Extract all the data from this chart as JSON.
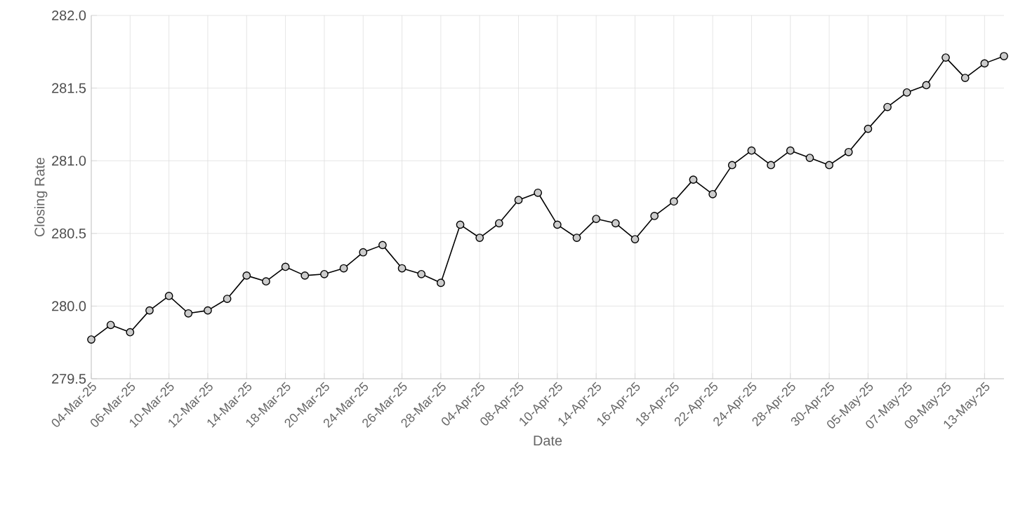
{
  "chart_data": {
    "type": "line",
    "xlabel": "Date",
    "ylabel": "Closing Rate",
    "categories": [
      "04-Mar-25",
      null,
      "06-Mar-25",
      null,
      "10-Mar-25",
      null,
      "12-Mar-25",
      null,
      "14-Mar-25",
      null,
      "18-Mar-25",
      null,
      "20-Mar-25",
      null,
      "24-Mar-25",
      null,
      "26-Mar-25",
      null,
      "28-Mar-25",
      null,
      "04-Apr-25",
      null,
      "08-Apr-25",
      null,
      "10-Apr-25",
      null,
      "14-Apr-25",
      null,
      "16-Apr-25",
      null,
      "18-Apr-25",
      null,
      "22-Apr-25",
      null,
      "24-Apr-25",
      null,
      "28-Apr-25",
      null,
      "30-Apr-25",
      null,
      "05-May-25",
      null,
      "07-May-25",
      null,
      "09-May-25",
      null,
      "13-May-25",
      null
    ],
    "series": [
      {
        "color": "#000000",
        "values": [
          279.77,
          279.87,
          279.82,
          279.97,
          280.07,
          279.95,
          279.97,
          280.05,
          280.21,
          280.17,
          280.27,
          280.21,
          280.22,
          280.26,
          280.37,
          280.42,
          280.26,
          280.22,
          280.16,
          280.56,
          280.47,
          280.57,
          280.73,
          280.78,
          280.56,
          280.47,
          280.6,
          280.57,
          280.46,
          280.62,
          280.72,
          280.87,
          280.77,
          280.97,
          281.07,
          280.97,
          281.07,
          281.02,
          280.97,
          281.06,
          281.22,
          281.37,
          281.47,
          281.52,
          281.71,
          281.57,
          281.67,
          281.72
        ]
      }
    ],
    "ylim": [
      279.5,
      282.0
    ],
    "yticks": [
      {
        "value": 279.5,
        "label": "279.5"
      },
      {
        "value": 280,
        "label": "280.0"
      },
      {
        "value": 280.5,
        "label": "280.5"
      },
      {
        "value": 281,
        "label": "281.0"
      },
      {
        "value": 281.5,
        "label": "281.5"
      },
      {
        "value": 282,
        "label": "282.0"
      }
    ],
    "grid": true,
    "marker": "circle",
    "line_style": "solid"
  }
}
